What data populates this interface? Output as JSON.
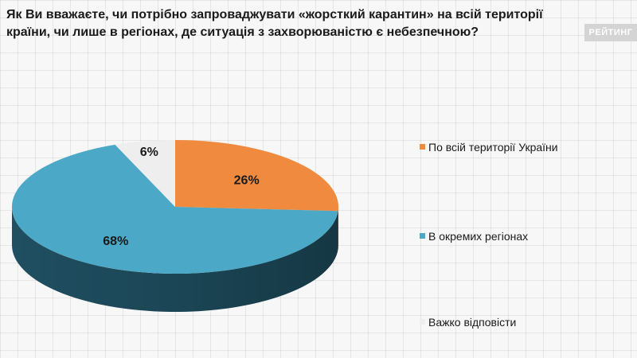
{
  "title": "Як Ви вважаєте, чи потрібно запроваджувати «жорсткий карантин» на всій території країни, чи лише в регіонах, де ситуація з захворюваністю є небезпечною?",
  "brand": "РЕЙТИНГ",
  "chart_data": {
    "type": "pie",
    "title": "Як Ви вважаєте, чи потрібно запроваджувати «жорсткий карантин» на всій території країни, чи лише в регіонах, де ситуація з захворюваністю є небезпечною?",
    "categories": [
      "По всій території України",
      "В окремих регіонах",
      "Важко відповісти"
    ],
    "values": [
      26,
      68,
      6
    ],
    "labels": [
      "26%",
      "68%",
      "6%"
    ],
    "colors": [
      "#f08a3e",
      "#4ba8c6",
      "#eeeeee"
    ],
    "side_colors": [
      "#b8642a",
      "#1f4f61",
      "#b5b5b5"
    ],
    "legend_position": "right",
    "style": "3d"
  }
}
